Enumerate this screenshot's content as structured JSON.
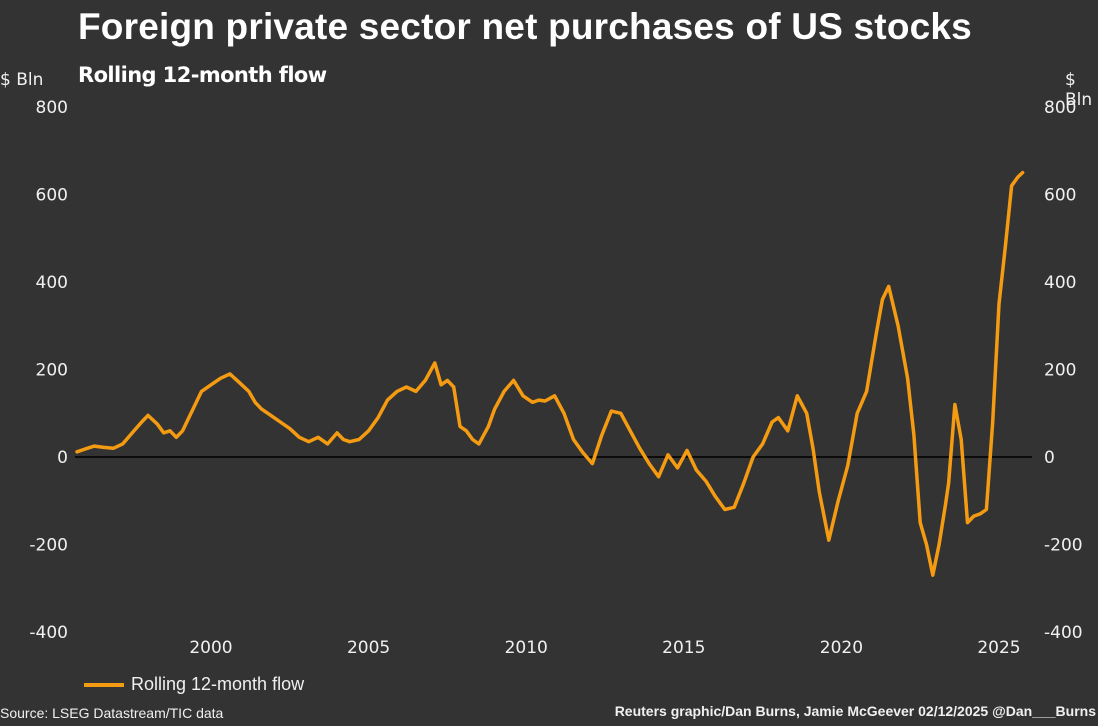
{
  "header": {
    "title": "Foreign private sector net purchases of US stocks",
    "subtitle": "Rolling 12-month flow",
    "unit_left": "$ Bln",
    "unit_right": "$ Bln"
  },
  "footer": {
    "source": "Source: LSEG Datastream/TIC data",
    "credit": "Reuters graphic/Dan Burns, Jamie McGeever 02/12/2025 @Dan___Burns"
  },
  "colors": {
    "background": "#333333",
    "line": "#f59b12",
    "zero_line": "#000000",
    "text": "#f0f0f0"
  },
  "chart_data": {
    "type": "line",
    "title": "Foreign private sector net purchases of US stocks",
    "subtitle": "Rolling 12-month flow",
    "xlabel": "",
    "ylabel": "$ Bln",
    "ylim": [
      -400,
      800
    ],
    "xlim": [
      1995.7,
      2026.5
    ],
    "y_ticks": [
      "800",
      "600",
      "400",
      "200",
      "0",
      "-200",
      "-400"
    ],
    "y_tick_values": [
      800,
      600,
      400,
      200,
      0,
      -200,
      -400
    ],
    "x_ticks": [
      "2000",
      "2005",
      "2010",
      "2015",
      "2020",
      "2025"
    ],
    "x_tick_values": [
      2000,
      2005,
      2010,
      2015,
      2020,
      2025
    ],
    "grid": false,
    "zero_line": true,
    "dual_y_axis": true,
    "legend": {
      "position": "bottom-left",
      "entries": [
        "Rolling 12-month flow"
      ]
    },
    "series": [
      {
        "name": "Rolling 12-month flow",
        "x": [
          1995.75,
          1996.0,
          1996.3,
          1996.6,
          1996.9,
          1997.2,
          1997.5,
          1997.8,
          1998.0,
          1998.3,
          1998.5,
          1998.7,
          1998.9,
          1999.1,
          1999.3,
          1999.5,
          1999.7,
          2000.0,
          2000.3,
          2000.6,
          2000.9,
          2001.2,
          2001.4,
          2001.6,
          2001.9,
          2002.2,
          2002.5,
          2002.8,
          2003.1,
          2003.4,
          2003.7,
          2004.0,
          2004.2,
          2004.4,
          2004.7,
          2005.0,
          2005.3,
          2005.6,
          2005.9,
          2006.2,
          2006.5,
          2006.8,
          2007.1,
          2007.3,
          2007.5,
          2007.7,
          2007.9,
          2008.1,
          2008.3,
          2008.5,
          2008.8,
          2009.0,
          2009.3,
          2009.6,
          2009.9,
          2010.2,
          2010.4,
          2010.6,
          2010.9,
          2011.2,
          2011.5,
          2011.8,
          2012.1,
          2012.4,
          2012.7,
          2013.0,
          2013.3,
          2013.6,
          2013.9,
          2014.2,
          2014.5,
          2014.8,
          2015.1,
          2015.4,
          2015.7,
          2016.0,
          2016.3,
          2016.6,
          2016.9,
          2017.2,
          2017.5,
          2017.8,
          2018.0,
          2018.3,
          2018.6,
          2018.9,
          2019.1,
          2019.3,
          2019.6,
          2019.9,
          2020.2,
          2020.5,
          2020.8,
          2021.1,
          2021.3,
          2021.5,
          2021.8,
          2022.1,
          2022.3,
          2022.5,
          2022.7,
          2022.9,
          2023.1,
          2023.3,
          2023.4,
          2023.6,
          2023.8,
          2024.0,
          2024.2,
          2024.4,
          2024.6,
          2024.8,
          2025.0,
          2025.2,
          2025.4,
          2025.6,
          2025.75
        ],
        "values": [
          12,
          18,
          25,
          22,
          20,
          30,
          55,
          80,
          95,
          75,
          55,
          60,
          45,
          60,
          90,
          120,
          150,
          165,
          180,
          190,
          170,
          150,
          125,
          110,
          95,
          80,
          65,
          45,
          35,
          45,
          30,
          55,
          40,
          35,
          40,
          60,
          90,
          130,
          150,
          160,
          150,
          175,
          215,
          165,
          175,
          160,
          70,
          60,
          40,
          30,
          70,
          110,
          150,
          175,
          140,
          125,
          130,
          128,
          140,
          100,
          40,
          10,
          -15,
          50,
          105,
          100,
          60,
          20,
          -15,
          -45,
          5,
          -25,
          15,
          -30,
          -55,
          -90,
          -120,
          -115,
          -60,
          0,
          30,
          80,
          90,
          60,
          140,
          100,
          20,
          -80,
          -190,
          -100,
          -20,
          100,
          150,
          280,
          360,
          390,
          300,
          180,
          50,
          -150,
          -200,
          -270,
          -200,
          -110,
          -60,
          120,
          40,
          -150,
          -135,
          -130,
          -120,
          80,
          350,
          480,
          620,
          640,
          650
        ]
      }
    ]
  }
}
